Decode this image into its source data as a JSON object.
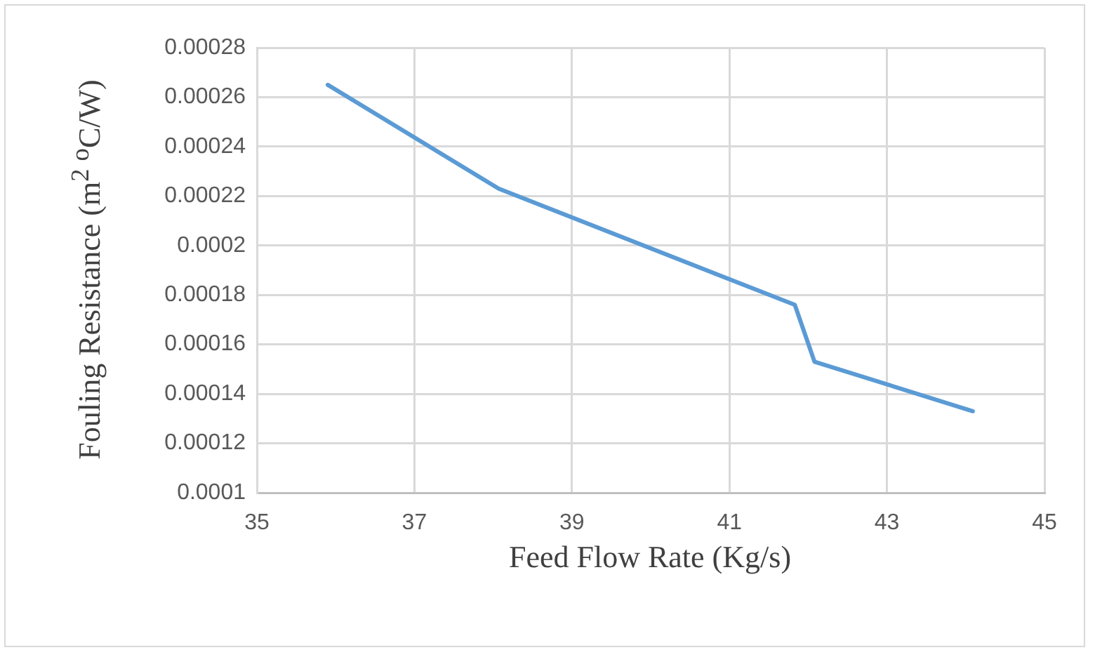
{
  "chart_data": {
    "type": "line",
    "xlabel": "Feed Flow Rate (Kg/s)",
    "ylabel": "Fouling Resistance (m$^{2}$ $^{o}$C/W)",
    "x": [
      35.9,
      38.07,
      41.83,
      42.08,
      44.09
    ],
    "series": [
      {
        "color": "#5b9bd5",
        "values": [
          0.000265,
          0.000223,
          0.000176,
          0.000153,
          0.000133
        ]
      }
    ],
    "xlim": [
      35,
      45
    ],
    "xticks": [
      35,
      37,
      39,
      41,
      43,
      45
    ],
    "ylim": [
      0.0001,
      0.00028
    ],
    "yticks": [
      0.0001,
      0.00012,
      0.00014,
      0.00016,
      0.00018,
      0.0002,
      0.00022,
      0.00024,
      0.00026,
      0.00028
    ],
    "grid": true,
    "legend": false,
    "marker": "none",
    "line_style": "solid"
  }
}
